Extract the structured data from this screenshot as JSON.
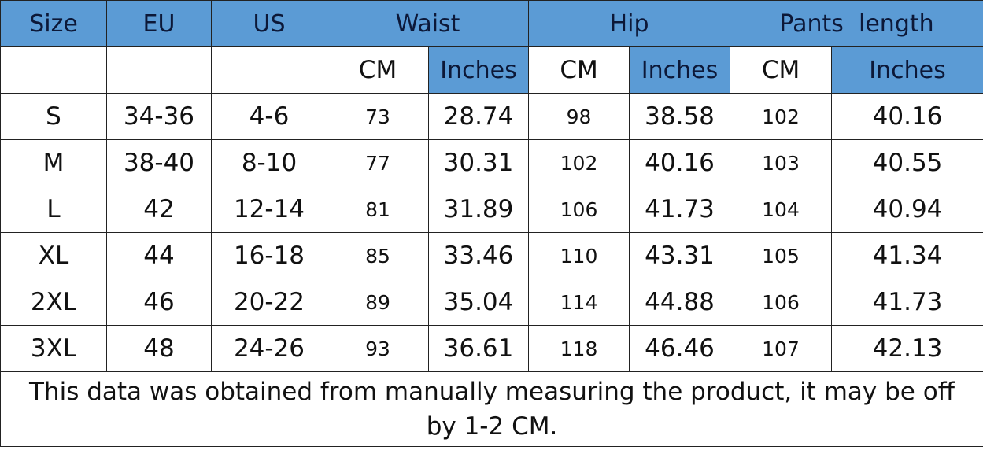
{
  "header": {
    "size": "Size",
    "eu": "EU",
    "us": "US",
    "waist": "Waist",
    "hip": "Hip",
    "pants_length": "Pants  length",
    "cm": "CM",
    "inches": "Inches"
  },
  "colors": {
    "header_bg": "#5B9BD5"
  },
  "rows": [
    {
      "size": "S",
      "eu": "34-36",
      "us": "4-6",
      "waist_cm": "73",
      "waist_in": "28.74",
      "hip_cm": "98",
      "hip_in": "38.58",
      "len_cm": "102",
      "len_in": "40.16"
    },
    {
      "size": "M",
      "eu": "38-40",
      "us": "8-10",
      "waist_cm": "77",
      "waist_in": "30.31",
      "hip_cm": "102",
      "hip_in": "40.16",
      "len_cm": "103",
      "len_in": "40.55"
    },
    {
      "size": "L",
      "eu": "42",
      "us": "12-14",
      "waist_cm": "81",
      "waist_in": "31.89",
      "hip_cm": "106",
      "hip_in": "41.73",
      "len_cm": "104",
      "len_in": "40.94"
    },
    {
      "size": "XL",
      "eu": "44",
      "us": "16-18",
      "waist_cm": "85",
      "waist_in": "33.46",
      "hip_cm": "110",
      "hip_in": "43.31",
      "len_cm": "105",
      "len_in": "41.34"
    },
    {
      "size": "2XL",
      "eu": "46",
      "us": "20-22",
      "waist_cm": "89",
      "waist_in": "35.04",
      "hip_cm": "114",
      "hip_in": "44.88",
      "len_cm": "106",
      "len_in": "41.73"
    },
    {
      "size": "3XL",
      "eu": "48",
      "us": "24-26",
      "waist_cm": "93",
      "waist_in": "36.61",
      "hip_cm": "118",
      "hip_in": "46.46",
      "len_cm": "107",
      "len_in": "42.13"
    }
  ],
  "note": "This data was obtained from manually measuring the product, it may be off by 1-2 CM."
}
